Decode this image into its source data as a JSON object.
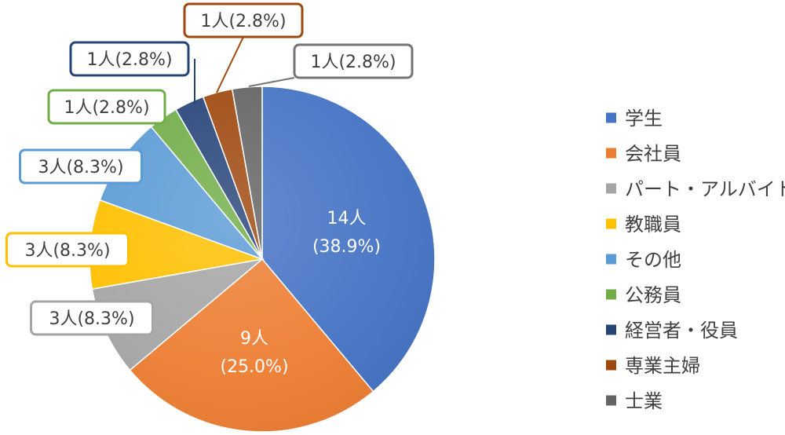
{
  "chart_data": {
    "type": "pie",
    "title": "",
    "unit": "人",
    "start_angle_deg": 0,
    "direction": "clockwise",
    "legend_position": "right",
    "slices": [
      {
        "name": "学生",
        "value": 14,
        "label_count": "14人",
        "label_percent": "(38.9%)",
        "label_full": "14人(38.9%)",
        "color": "#4472C4",
        "label_inside": true
      },
      {
        "name": "会社員",
        "value": 9,
        "label_count": "9人",
        "label_percent": "(25.0%)",
        "label_full": "9人(25.0%)",
        "color": "#ED7D31",
        "label_inside": true
      },
      {
        "name": "パート・アルバイト",
        "value": 3,
        "label_full": "3人(8.3%)",
        "color": "#A5A5A5",
        "label_inside": false
      },
      {
        "name": "教職員",
        "value": 3,
        "label_full": "3人(8.3%)",
        "color": "#FFC000",
        "label_inside": false
      },
      {
        "name": "その他",
        "value": 3,
        "label_full": "3人(8.3%)",
        "color": "#5B9BD5",
        "label_inside": false
      },
      {
        "name": "公務員",
        "value": 1,
        "label_full": "1人(2.8%)",
        "color": "#70AD47",
        "label_inside": false
      },
      {
        "name": "経営者・役員",
        "value": 1,
        "label_full": "1人(2.8%)",
        "color": "#264478",
        "label_inside": false
      },
      {
        "name": "専業主婦",
        "value": 1,
        "label_full": "1人(2.8%)",
        "color": "#9E480E",
        "label_inside": false
      },
      {
        "name": "士業",
        "value": 1,
        "label_full": "1人(2.8%)",
        "color": "#636363",
        "label_inside": false
      }
    ]
  }
}
